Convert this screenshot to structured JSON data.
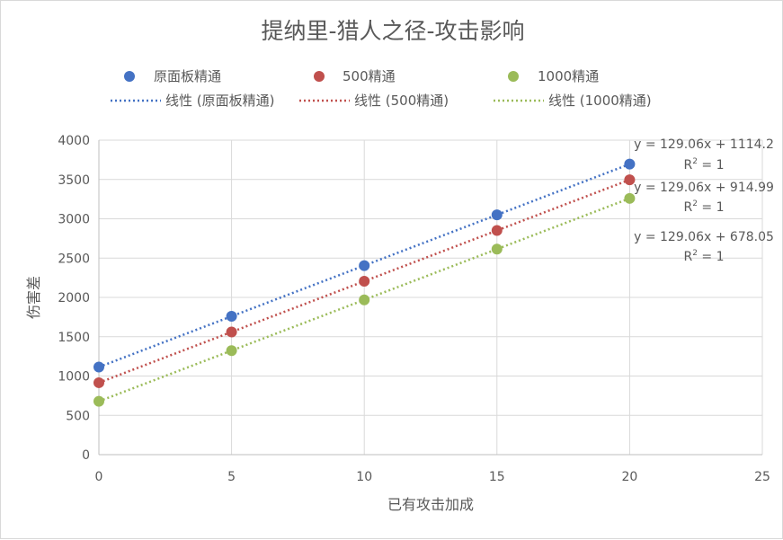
{
  "chart_data": {
    "type": "scatter",
    "title": "提纳里-猎人之径-攻击影响",
    "xlabel": "已有攻击加成",
    "ylabel": "伤害差",
    "xlim": [
      0,
      25
    ],
    "ylim": [
      0,
      4000
    ],
    "xticks": [
      "0",
      "5",
      "10",
      "15",
      "20",
      "25"
    ],
    "yticks": [
      "0",
      "500",
      "1000",
      "1500",
      "2000",
      "2500",
      "3000",
      "3500",
      "4000"
    ],
    "grid": true,
    "legend_position": "top",
    "series": [
      {
        "name": "原面板精通",
        "color": "#4472c4",
        "points": [
          [
            0,
            1114.2
          ],
          [
            5,
            1759.5
          ],
          [
            10,
            2404.8
          ],
          [
            15,
            3050.1
          ],
          [
            20,
            3695.4
          ]
        ],
        "trendline_label": "线性 (原面板精通)",
        "equation": "y = 129.06x + 1114.2",
        "r2_label": "R",
        "r2_exp": "2",
        "r2_value": " = 1"
      },
      {
        "name": "500精通",
        "color": "#c0504d",
        "points": [
          [
            0,
            914.99
          ],
          [
            5,
            1560.29
          ],
          [
            10,
            2205.59
          ],
          [
            15,
            2850.89
          ],
          [
            20,
            3496.19
          ]
        ],
        "trendline_label": "线性 (500精通)",
        "equation": "y = 129.06x + 914.99",
        "r2_label": "R",
        "r2_exp": "2",
        "r2_value": " = 1"
      },
      {
        "name": "1000精通",
        "color": "#9bbb59",
        "points": [
          [
            0,
            678.05
          ],
          [
            5,
            1323.35
          ],
          [
            10,
            1968.65
          ],
          [
            15,
            2613.95
          ],
          [
            20,
            3259.25
          ]
        ],
        "trendline_label": "线性 (1000精通)",
        "equation": "y = 129.06x + 678.05",
        "r2_label": "R",
        "r2_exp": "2",
        "r2_value": " = 1"
      }
    ]
  }
}
